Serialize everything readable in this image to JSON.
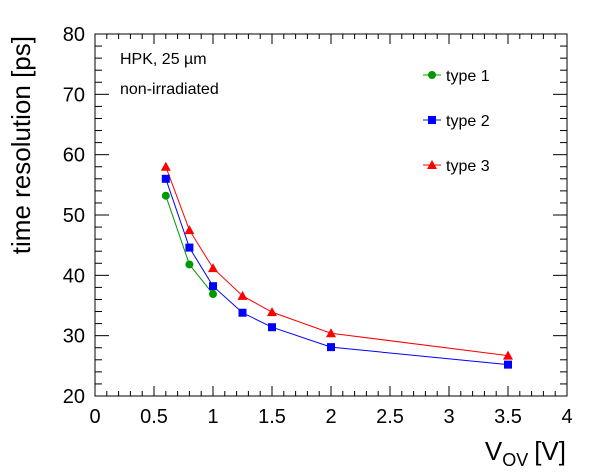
{
  "chart_data": {
    "type": "line",
    "annotations": [
      "HPK, 25 µm",
      "non-irradiated"
    ],
    "xlabel": "V",
    "xlabel_sub": "OV",
    "xlabel_unit": "[V]",
    "ylabel": "time resolution [ps]",
    "xlim": [
      0,
      4
    ],
    "ylim": [
      20,
      80
    ],
    "x_ticks": [
      "0",
      "0.5",
      "1",
      "1.5",
      "2",
      "2.5",
      "3",
      "3.5",
      "4"
    ],
    "y_ticks": [
      "20",
      "30",
      "40",
      "50",
      "60",
      "70",
      "80"
    ],
    "grid": false,
    "legend_position": "top-right",
    "series": [
      {
        "name": "type 1",
        "color": "#009900",
        "marker": "circle",
        "x": [
          0.6,
          0.8,
          1.0
        ],
        "y": [
          53.2,
          41.8,
          36.9
        ]
      },
      {
        "name": "type 2",
        "color": "#0000ff",
        "marker": "square",
        "x": [
          0.6,
          0.8,
          1.0,
          1.25,
          1.5,
          2.0,
          3.5
        ],
        "y": [
          56.0,
          44.6,
          38.2,
          33.8,
          31.4,
          28.1,
          25.2
        ]
      },
      {
        "name": "type 3",
        "color": "#ff0000",
        "marker": "triangle",
        "x": [
          0.6,
          0.8,
          1.0,
          1.25,
          1.5,
          2.0,
          3.5
        ],
        "y": [
          58.0,
          47.5,
          41.2,
          36.6,
          33.9,
          30.4,
          26.7
        ]
      }
    ]
  }
}
